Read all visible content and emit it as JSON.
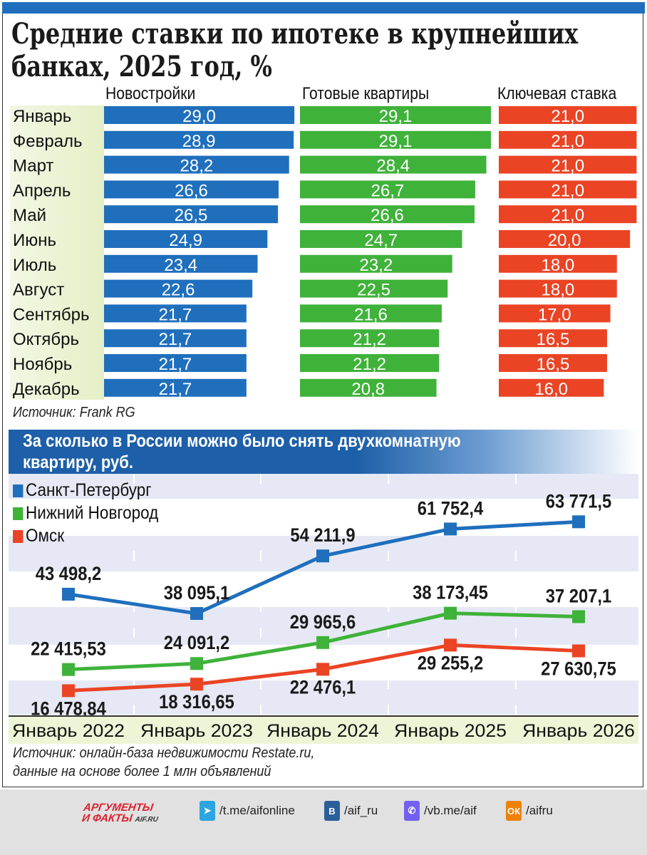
{
  "header": {
    "title_line1": "Средние ставки по ипотеке в крупнейших",
    "title_line2": "банках, 2025 год, %"
  },
  "chart_data": [
    {
      "type": "bar",
      "orientation": "horizontal",
      "title": "Средние ставки по ипотеке в крупнейших банках, 2025 год, %",
      "categories": [
        "Январь",
        "Февраль",
        "Март",
        "Апрель",
        "Май",
        "Июнь",
        "Июль",
        "Август",
        "Сентябрь",
        "Октябрь",
        "Ноябрь",
        "Декабрь"
      ],
      "series": [
        {
          "name": "Новостройки",
          "color": "#1f6fbd",
          "values": [
            29.0,
            28.9,
            28.2,
            26.6,
            26.5,
            24.9,
            23.4,
            22.6,
            21.7,
            21.7,
            21.7,
            21.7
          ]
        },
        {
          "name": "Готовые квартиры",
          "color": "#3fb23a",
          "values": [
            29.1,
            29.1,
            28.4,
            26.7,
            26.6,
            24.7,
            23.2,
            22.5,
            21.6,
            21.2,
            21.2,
            20.8
          ]
        },
        {
          "name": "Ключевая ставка",
          "color": "#ea4425",
          "values": [
            21.0,
            21.0,
            21.0,
            21.0,
            21.0,
            20.0,
            18.0,
            18.0,
            17.0,
            16.5,
            16.5,
            16.0
          ]
        }
      ],
      "source": "Источник: Frank RG"
    },
    {
      "type": "line",
      "title_line1": "За сколько в России можно было снять двухкомнатную",
      "title_line2": "квартиру, руб.",
      "categories": [
        "Январь 2022",
        "Январь 2023",
        "Январь 2024",
        "Январь 2025",
        "Январь 2026"
      ],
      "ylim": [
        9780,
        77200
      ],
      "grid": "horizontal bands",
      "legend": "top-left",
      "series": [
        {
          "name": "Санкт-Петербург",
          "color": "#1f6fbd",
          "values": [
            43498.2,
            38095.1,
            54211.9,
            61752.4,
            63771.5
          ]
        },
        {
          "name": "Нижний Новгород",
          "color": "#3fb23a",
          "values": [
            22415.53,
            24091.2,
            29965.6,
            38173.45,
            37207.1
          ]
        },
        {
          "name": "Омск",
          "color": "#ea4425",
          "values": [
            16478.84,
            18316.65,
            22476.1,
            29255.2,
            27630.75
          ]
        }
      ],
      "source_line1": "Источник: онлайн-база недвижимости Restate.ru,",
      "source_line2": "данные на основе более 1 млн объявлений"
    }
  ],
  "footer": {
    "logo_line1": "АРГУМЕНТЫ",
    "logo_line2": "И ФАКТЫ",
    "logo_site": "AIF.RU",
    "links": [
      {
        "icon": "telegram-icon",
        "label": "/t.me/aifonline",
        "color": "#2ca5e0"
      },
      {
        "icon": "vk-icon",
        "label": "/aif_ru",
        "color": "#2b5f99"
      },
      {
        "icon": "viber-icon",
        "label": "/vb.me/aif",
        "color": "#7360f2"
      },
      {
        "icon": "odnoklassniki-icon",
        "label": "/aifru",
        "color": "#ee8208"
      }
    ]
  }
}
